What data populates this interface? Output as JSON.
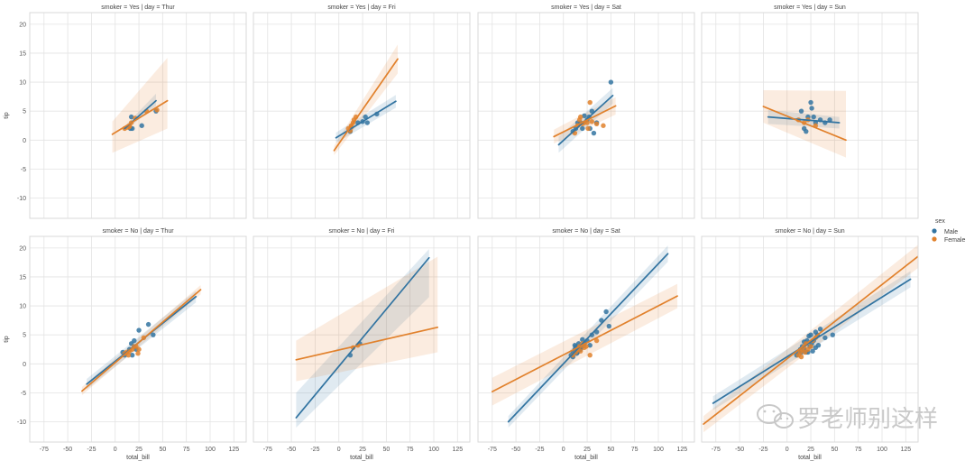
{
  "chart_data": {
    "type": "scatter",
    "facet_grid": {
      "rows": "smoker",
      "cols": "day"
    },
    "row_levels": [
      "Yes",
      "No"
    ],
    "col_levels": [
      "Thur",
      "Fri",
      "Sat",
      "Sun"
    ],
    "xlim": [
      -90,
      138
    ],
    "ylim": [
      -13.5,
      22
    ],
    "x_ticks": [
      -75,
      -50,
      -25,
      0,
      25,
      50,
      75,
      100,
      125
    ],
    "y_ticks": [
      -10,
      -5,
      0,
      5,
      10,
      15,
      20
    ],
    "xlabel": "total_bill",
    "ylabel": "tip",
    "legend": {
      "title": "sex",
      "placement": "right",
      "entries": [
        {
          "name": "Male",
          "color": "#3274a1"
        },
        {
          "name": "Female",
          "color": "#e1812c"
        }
      ]
    },
    "panels": [
      {
        "title": "smoker = Yes | day = Thur",
        "row": 0,
        "col": 0,
        "fits": {
          "Male": {
            "x": [
              10,
              43
            ],
            "y": [
              2.0,
              6.8
            ],
            "ci_lo": [
              1.6,
              5.9
            ],
            "ci_hi": [
              2.4,
              8.0
            ]
          },
          "Female": {
            "x": [
              -3,
              55
            ],
            "y": [
              1.0,
              6.8
            ],
            "ci_lo": [
              -2.2,
              2.0
            ],
            "ci_hi": [
              3.2,
              14.2
            ]
          }
        },
        "points": {
          "Male": [
            [
              16,
              2.0
            ],
            [
              18,
              2.0
            ],
            [
              17,
              4.0
            ],
            [
              28,
              2.5
            ],
            [
              43,
              5.0
            ]
          ],
          "Female": [
            [
              10,
              2.0
            ],
            [
              13,
              2.2
            ],
            [
              15,
              2.3
            ],
            [
              17,
              3.0
            ],
            [
              21,
              3.8
            ],
            [
              33,
              5.0
            ],
            [
              44,
              5.2
            ],
            [
              15,
              2.5
            ]
          ]
        }
      },
      {
        "title": "smoker = Yes | day = Fri",
        "row": 0,
        "col": 1,
        "fits": {
          "Male": {
            "x": [
              -3,
              60
            ],
            "y": [
              0.4,
              6.7
            ],
            "ci_lo": [
              -0.5,
              5.6
            ],
            "ci_hi": [
              1.3,
              7.8
            ]
          },
          "Female": {
            "x": [
              -5,
              62
            ],
            "y": [
              -1.8,
              14.0
            ],
            "ci_lo": [
              -2.6,
              11.5
            ],
            "ci_hi": [
              -1.0,
              16.5
            ]
          }
        },
        "points": {
          "Male": [
            [
              12,
              1.5
            ],
            [
              20,
              3.0
            ],
            [
              25,
              3.2
            ],
            [
              28,
              4.0
            ],
            [
              40,
              4.5
            ],
            [
              30,
              3.0
            ]
          ],
          "Female": [
            [
              10,
              2.0
            ],
            [
              13,
              2.5
            ],
            [
              15,
              3.0
            ],
            [
              16,
              3.5
            ],
            [
              18,
              4.0
            ],
            [
              13,
              2.2
            ],
            [
              12,
              1.6
            ]
          ]
        }
      },
      {
        "title": "smoker = Yes | day = Sat",
        "row": 0,
        "col": 2,
        "fits": {
          "Male": {
            "x": [
              -5,
              52
            ],
            "y": [
              -0.8,
              7.7
            ],
            "ci_lo": [
              -2.2,
              6.3
            ],
            "ci_hi": [
              0.6,
              9.0
            ]
          },
          "Female": {
            "x": [
              -10,
              55
            ],
            "y": [
              0.6,
              5.9
            ],
            "ci_lo": [
              -0.6,
              4.4
            ],
            "ci_hi": [
              1.8,
              7.4
            ]
          }
        },
        "points": {
          "Male": [
            [
              10,
              1.5
            ],
            [
              13,
              2.0
            ],
            [
              15,
              3.0
            ],
            [
              18,
              3.0
            ],
            [
              20,
              2.0
            ],
            [
              25,
              3.5
            ],
            [
              27,
              4.0
            ],
            [
              30,
              5.0
            ],
            [
              35,
              3.0
            ],
            [
              50,
              10.0
            ],
            [
              28,
              2.0
            ],
            [
              32,
              1.2
            ],
            [
              22,
              4.2
            ]
          ],
          "Female": [
            [
              12,
              1.2
            ],
            [
              15,
              2.5
            ],
            [
              17,
              3.5
            ],
            [
              20,
              2.8
            ],
            [
              22,
              3.0
            ],
            [
              25,
              3.0
            ],
            [
              28,
              6.5
            ],
            [
              30,
              3.2
            ],
            [
              35,
              2.8
            ],
            [
              42,
              2.5
            ],
            [
              18,
              4.0
            ],
            [
              26,
              2.0
            ]
          ]
        }
      },
      {
        "title": "smoker = Yes | day = Sun",
        "row": 0,
        "col": 3,
        "fits": {
          "Male": {
            "x": [
              -20,
              55
            ],
            "y": [
              4.0,
              3.0
            ],
            "ci_lo": [
              2.8,
              2.0
            ],
            "ci_hi": [
              5.2,
              4.0
            ]
          },
          "Female": {
            "x": [
              -25,
              62
            ],
            "y": [
              5.8,
              0.0
            ],
            "ci_lo": [
              3.0,
              -3.0
            ],
            "ci_hi": [
              8.6,
              8.5
            ]
          }
        },
        "points": {
          "Male": [
            [
              15,
              5.0
            ],
            [
              18,
              2.0
            ],
            [
              20,
              1.5
            ],
            [
              22,
              4.0
            ],
            [
              25,
              6.5
            ],
            [
              26,
              5.5
            ],
            [
              28,
              4.0
            ],
            [
              30,
              3.0
            ],
            [
              35,
              3.5
            ],
            [
              40,
              3.0
            ],
            [
              45,
              3.5
            ]
          ],
          "Female": [
            [
              12,
              3.5
            ],
            [
              18,
              3.0
            ],
            [
              22,
              3.5
            ],
            [
              30,
              2.5
            ]
          ]
        }
      },
      {
        "title": "smoker = No | day = Thur",
        "row": 1,
        "col": 0,
        "fits": {
          "Male": {
            "x": [
              -30,
              85
            ],
            "y": [
              -3.5,
              11.6
            ],
            "ci_lo": [
              -4.4,
              10.6
            ],
            "ci_hi": [
              -2.6,
              12.6
            ]
          },
          "Female": {
            "x": [
              -35,
              90
            ],
            "y": [
              -4.7,
              12.8
            ],
            "ci_lo": [
              -5.4,
              12.0
            ],
            "ci_hi": [
              -4.0,
              13.6
            ]
          }
        },
        "points": {
          "Male": [
            [
              8,
              2.0
            ],
            [
              10,
              1.5
            ],
            [
              15,
              2.5
            ],
            [
              17,
              3.5
            ],
            [
              20,
              4.0
            ],
            [
              25,
              5.8
            ],
            [
              35,
              6.8
            ],
            [
              40,
              5.0
            ],
            [
              22,
              2.5
            ],
            [
              18,
              1.5
            ]
          ],
          "Female": [
            [
              10,
              1.8
            ],
            [
              12,
              2.0
            ],
            [
              15,
              2.2
            ],
            [
              18,
              2.5
            ],
            [
              20,
              3.0
            ],
            [
              22,
              3.0
            ],
            [
              25,
              2.5
            ],
            [
              30,
              4.5
            ],
            [
              14,
              1.5
            ],
            [
              24,
              1.8
            ]
          ]
        }
      },
      {
        "title": "smoker = No | day = Fri",
        "row": 1,
        "col": 1,
        "fits": {
          "Male": {
            "x": [
              -45,
              95
            ],
            "y": [
              -9.3,
              18.3
            ],
            "ci_lo": [
              -11.0,
              11.5
            ],
            "ci_hi": [
              -5.0,
              19.8
            ]
          },
          "Female": {
            "x": [
              -45,
              104
            ],
            "y": [
              0.7,
              6.3
            ],
            "ci_lo": [
              -3.0,
              2.0
            ],
            "ci_hi": [
              4.0,
              18.5
            ]
          }
        },
        "points": {
          "Male": [
            [
              12,
              1.5
            ],
            [
              22,
              3.5
            ]
          ],
          "Female": [
            [
              15,
              2.8
            ],
            [
              20,
              3.2
            ]
          ]
        }
      },
      {
        "title": "smoker = No | day = Sat",
        "row": 1,
        "col": 2,
        "fits": {
          "Male": {
            "x": [
              -58,
              110
            ],
            "y": [
              -10.0,
              19.0
            ],
            "ci_lo": [
              -11.0,
              17.6
            ],
            "ci_hi": [
              -9.0,
              20.4
            ]
          },
          "Female": {
            "x": [
              -75,
              120
            ],
            "y": [
              -4.8,
              11.7
            ],
            "ci_lo": [
              -7.2,
              9.6
            ],
            "ci_hi": [
              -2.4,
              13.8
            ]
          }
        },
        "points": {
          "Male": [
            [
              8,
              1.5
            ],
            [
              10,
              2.0
            ],
            [
              12,
              2.5
            ],
            [
              13,
              3.0
            ],
            [
              15,
              2.0
            ],
            [
              16,
              3.5
            ],
            [
              18,
              2.5
            ],
            [
              20,
              3.0
            ],
            [
              22,
              3.5
            ],
            [
              25,
              4.0
            ],
            [
              30,
              5.0
            ],
            [
              35,
              5.5
            ],
            [
              40,
              7.5
            ],
            [
              45,
              9.0
            ],
            [
              48,
              6.5
            ],
            [
              10,
              1.2
            ],
            [
              14,
              1.8
            ],
            [
              17,
              2.8
            ],
            [
              28,
              3.2
            ],
            [
              20,
              4.2
            ],
            [
              12,
              3.2
            ]
          ],
          "Female": [
            [
              10,
              1.5
            ],
            [
              13,
              2.0
            ],
            [
              15,
              2.5
            ],
            [
              17,
              3.0
            ],
            [
              20,
              3.5
            ],
            [
              24,
              3.0
            ],
            [
              28,
              1.5
            ],
            [
              35,
              4.0
            ],
            [
              18,
              2.2
            ],
            [
              22,
              2.8
            ]
          ]
        }
      },
      {
        "title": "smoker = No | day = Sun",
        "row": 1,
        "col": 3,
        "fits": {
          "Male": {
            "x": [
              -78,
              130
            ],
            "y": [
              -6.8,
              14.6
            ],
            "ci_lo": [
              -8.0,
              13.2
            ],
            "ci_hi": [
              -5.6,
              16.0
            ]
          },
          "Female": {
            "x": [
              -88,
              140
            ],
            "y": [
              -10.4,
              18.8
            ],
            "ci_lo": [
              -11.8,
              16.8
            ],
            "ci_hi": [
              -9.0,
              20.8
            ]
          }
        },
        "points": {
          "Male": [
            [
              10,
              1.5
            ],
            [
              12,
              2.0
            ],
            [
              14,
              2.5
            ],
            [
              15,
              2.0
            ],
            [
              16,
              3.0
            ],
            [
              18,
              2.5
            ],
            [
              20,
              3.5
            ],
            [
              21,
              4.0
            ],
            [
              22,
              2.0
            ],
            [
              24,
              3.0
            ],
            [
              25,
              5.0
            ],
            [
              26,
              3.5
            ],
            [
              28,
              4.0
            ],
            [
              30,
              5.5
            ],
            [
              32,
              5.0
            ],
            [
              35,
              6.0
            ],
            [
              40,
              4.5
            ],
            [
              48,
              5.0
            ],
            [
              20,
              2.0
            ],
            [
              27,
              2.2
            ],
            [
              30,
              2.8
            ],
            [
              18,
              3.8
            ],
            [
              23,
              4.8
            ],
            [
              33,
              3.2
            ]
          ],
          "Female": [
            [
              12,
              1.5
            ],
            [
              14,
              2.0
            ],
            [
              16,
              2.5
            ],
            [
              18,
              3.0
            ],
            [
              20,
              3.5
            ],
            [
              22,
              2.5
            ],
            [
              25,
              3.0
            ],
            [
              27,
              4.0
            ],
            [
              30,
              4.5
            ],
            [
              15,
              1.2
            ],
            [
              19,
              2.0
            ]
          ]
        }
      }
    ]
  },
  "watermark": {
    "text": "罗老师别这样"
  }
}
